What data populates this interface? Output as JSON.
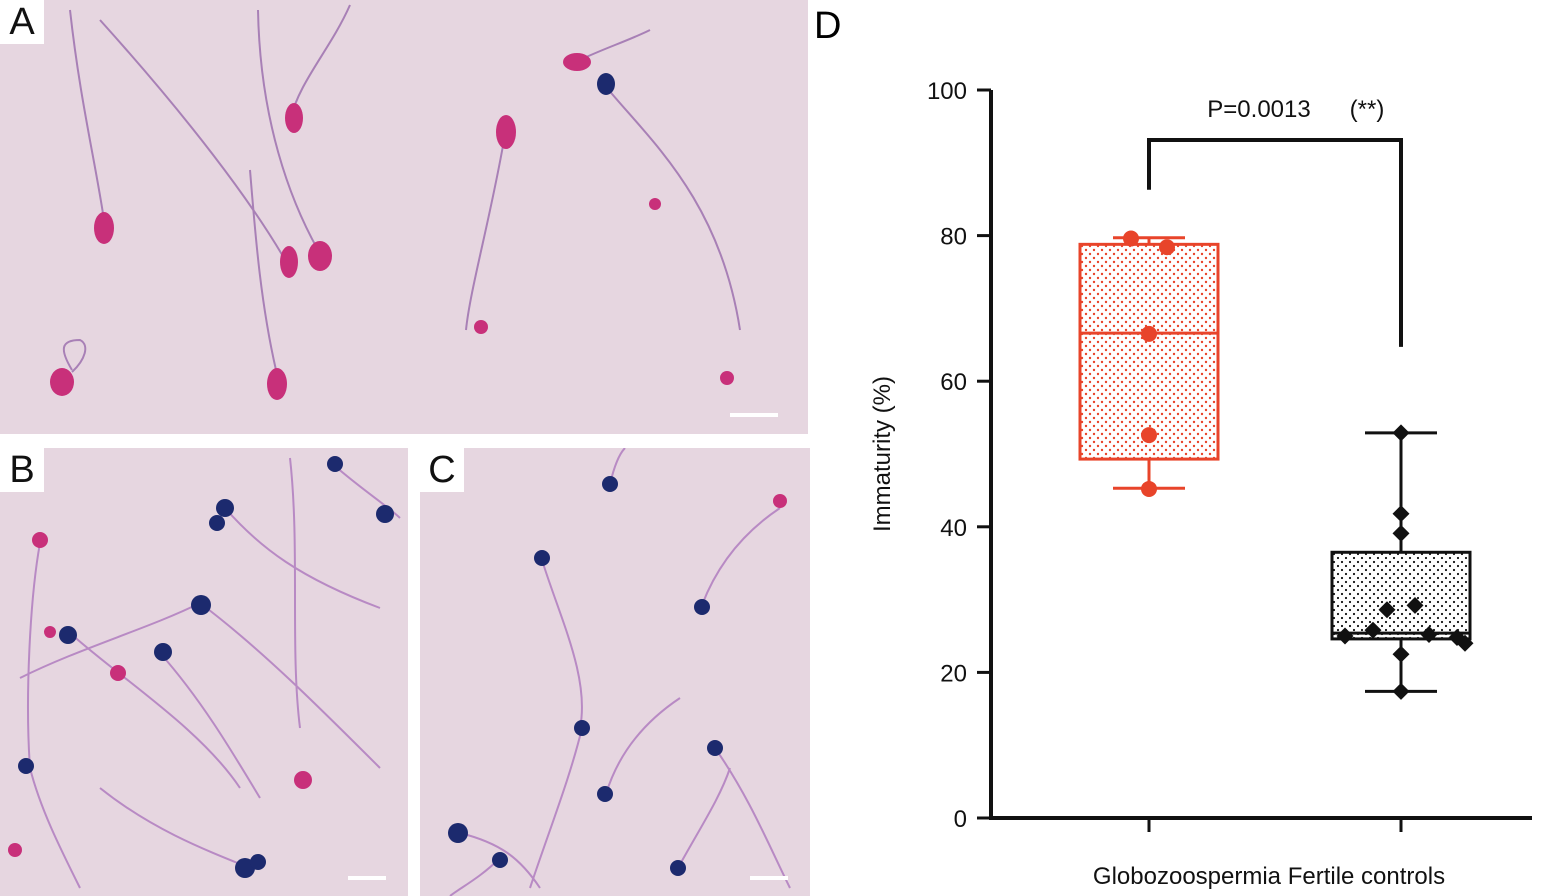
{
  "panels": {
    "a": {
      "letter": "A"
    },
    "b": {
      "letter": "B"
    },
    "c": {
      "letter": "C"
    },
    "d": {
      "letter": "D"
    }
  },
  "colors": {
    "background_slide": "#e6d6e0",
    "pink_head": "#c8307a",
    "blue_head": "#1c2a6e",
    "tail": "#a880b6",
    "globozoospermia": "#e8442a",
    "fertile_controls": "#111111"
  },
  "chart_data": {
    "type": "box",
    "title": "",
    "ylabel": "Immaturity (%)",
    "xlabel": "",
    "ylim": [
      0,
      100
    ],
    "yticks": [
      0,
      20,
      40,
      60,
      80,
      100
    ],
    "categories": [
      "Globozoospermia",
      "Fertile controls"
    ],
    "x_caption": "Globozoospermia Fertile controls",
    "significance": {
      "text": "P=0.0013",
      "stars": "(**)"
    },
    "series": [
      {
        "name": "Globozoospermia",
        "min": 45.3,
        "q1": 49.3,
        "median": 66.6,
        "q3": 78.8,
        "max": 79.7,
        "points": [
          79.6,
          78.4,
          66.5,
          52.6,
          45.2
        ]
      },
      {
        "name": "Fertile controls",
        "min": 17.4,
        "q1": 24.6,
        "median": 25.4,
        "q3": 36.5,
        "max": 52.9,
        "points": [
          52.9,
          41.8,
          39.1,
          29.2,
          28.6,
          25.8,
          25.2,
          25.0,
          24.8,
          24.0,
          22.5,
          17.4
        ]
      }
    ]
  }
}
